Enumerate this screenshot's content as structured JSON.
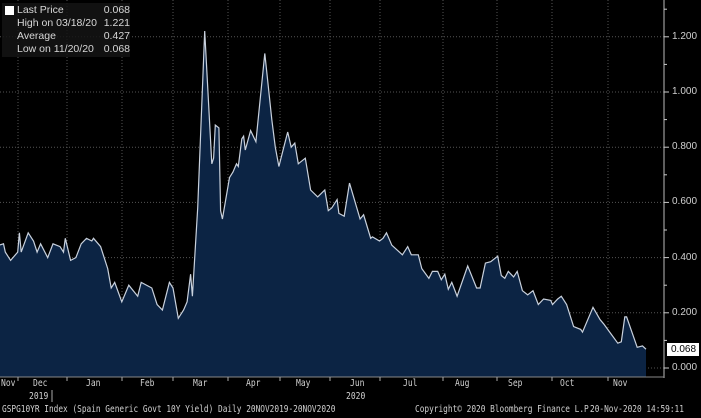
{
  "chart_data": {
    "type": "area",
    "title": "GSPG10YR Index (Spain Generic Govt 10Y Yield)",
    "period": "Daily 20NOV2019-20NOV2020",
    "x_unit": "days since 20-Nov-2019",
    "xlim": [
      0,
      366
    ],
    "ylim": [
      0,
      1.3
    ],
    "yticks": [
      "0.000",
      "0.200",
      "0.400",
      "0.600",
      "0.800",
      "1.000",
      "1.200"
    ],
    "ytick_values": [
      0,
      0.2,
      0.4,
      0.6,
      0.8,
      1.0,
      1.2
    ],
    "month_labels": [
      "Nov",
      "Dec",
      "Jan",
      "Feb",
      "Mar",
      "Apr",
      "May",
      "Jun",
      "Jul",
      "Aug",
      "Sep",
      "Oct",
      "Nov"
    ],
    "year_labels": [
      "2019",
      "2020"
    ],
    "grid": true,
    "legend": [
      {
        "label": "Last Price",
        "value": "0.068"
      },
      {
        "label": "High on 03/18/20",
        "value": "1.221"
      },
      {
        "label": "Average",
        "value": "0.427"
      },
      {
        "label": "Low on 11/20/20",
        "value": "0.068"
      }
    ],
    "last_value_label": "0.068",
    "colors": {
      "fill": "#0c2444",
      "line": "#c9d1dd",
      "background": "#000000"
    },
    "series": [
      {
        "name": "GSPG10YR",
        "points": [
          [
            0,
            0.446
          ],
          [
            2,
            0.45
          ],
          [
            3,
            0.42
          ],
          [
            6,
            0.39
          ],
          [
            10,
            0.42
          ],
          [
            11,
            0.49
          ],
          [
            12,
            0.42
          ],
          [
            16,
            0.49
          ],
          [
            19,
            0.46
          ],
          [
            21,
            0.42
          ],
          [
            23,
            0.45
          ],
          [
            27,
            0.4
          ],
          [
            30,
            0.45
          ],
          [
            34,
            0.44
          ],
          [
            36,
            0.42
          ],
          [
            37,
            0.47
          ],
          [
            40,
            0.39
          ],
          [
            43,
            0.4
          ],
          [
            46,
            0.45
          ],
          [
            49,
            0.47
          ],
          [
            52,
            0.46
          ],
          [
            53,
            0.47
          ],
          [
            57,
            0.44
          ],
          [
            61,
            0.36
          ],
          [
            63,
            0.29
          ],
          [
            65,
            0.31
          ],
          [
            69,
            0.24
          ],
          [
            73,
            0.3
          ],
          [
            78,
            0.26
          ],
          [
            80,
            0.31
          ],
          [
            86,
            0.29
          ],
          [
            89,
            0.23
          ],
          [
            92,
            0.21
          ],
          [
            96,
            0.31
          ],
          [
            98,
            0.29
          ],
          [
            101,
            0.18
          ],
          [
            104,
            0.21
          ],
          [
            106,
            0.24
          ],
          [
            108,
            0.34
          ],
          [
            109,
            0.26
          ],
          [
            112,
            0.58
          ],
          [
            116,
            1.221
          ],
          [
            120,
            0.74
          ],
          [
            121,
            0.76
          ],
          [
            122,
            0.88
          ],
          [
            124,
            0.87
          ],
          [
            125,
            0.57
          ],
          [
            126,
            0.54
          ],
          [
            130,
            0.69
          ],
          [
            132,
            0.71
          ],
          [
            134,
            0.74
          ],
          [
            135,
            0.73
          ],
          [
            137,
            0.83
          ],
          [
            138,
            0.84
          ],
          [
            139,
            0.79
          ],
          [
            142,
            0.86
          ],
          [
            145,
            0.82
          ],
          [
            150,
            1.14
          ],
          [
            154,
            0.9
          ],
          [
            156,
            0.8
          ],
          [
            158,
            0.73
          ],
          [
            160,
            0.78
          ],
          [
            163,
            0.855
          ],
          [
            165,
            0.8
          ],
          [
            167,
            0.815
          ],
          [
            169,
            0.74
          ],
          [
            173,
            0.76
          ],
          [
            176,
            0.645
          ],
          [
            180,
            0.62
          ],
          [
            184,
            0.645
          ],
          [
            186,
            0.57
          ],
          [
            188,
            0.58
          ],
          [
            191,
            0.61
          ],
          [
            192,
            0.56
          ],
          [
            195,
            0.55
          ],
          [
            198,
            0.67
          ],
          [
            204,
            0.54
          ],
          [
            206,
            0.555
          ],
          [
            210,
            0.47
          ],
          [
            211,
            0.475
          ],
          [
            215,
            0.46
          ],
          [
            217,
            0.47
          ],
          [
            219,
            0.49
          ],
          [
            222,
            0.445
          ],
          [
            228,
            0.41
          ],
          [
            231,
            0.44
          ],
          [
            233,
            0.41
          ],
          [
            237,
            0.41
          ],
          [
            239,
            0.36
          ],
          [
            243,
            0.325
          ],
          [
            245,
            0.35
          ],
          [
            248,
            0.35
          ],
          [
            250,
            0.32
          ],
          [
            252,
            0.34
          ],
          [
            254,
            0.285
          ],
          [
            256,
            0.31
          ],
          [
            259,
            0.26
          ],
          [
            265,
            0.37
          ],
          [
            270,
            0.29
          ],
          [
            272,
            0.29
          ],
          [
            275,
            0.38
          ],
          [
            278,
            0.385
          ],
          [
            282,
            0.405
          ],
          [
            284,
            0.335
          ],
          [
            286,
            0.325
          ],
          [
            288,
            0.35
          ],
          [
            291,
            0.33
          ],
          [
            293,
            0.35
          ],
          [
            296,
            0.28
          ],
          [
            299,
            0.265
          ],
          [
            302,
            0.28
          ],
          [
            305,
            0.23
          ],
          [
            308,
            0.25
          ],
          [
            312,
            0.245
          ],
          [
            313,
            0.23
          ],
          [
            316,
            0.25
          ],
          [
            318,
            0.26
          ],
          [
            321,
            0.23
          ],
          [
            325,
            0.15
          ],
          [
            329,
            0.14
          ],
          [
            330,
            0.13
          ],
          [
            336,
            0.22
          ],
          [
            340,
            0.175
          ],
          [
            342,
            0.16
          ],
          [
            346,
            0.125
          ],
          [
            350,
            0.09
          ],
          [
            352,
            0.095
          ],
          [
            354,
            0.185
          ],
          [
            355,
            0.185
          ],
          [
            358,
            0.13
          ],
          [
            361,
            0.075
          ],
          [
            364,
            0.08
          ],
          [
            366,
            0.068
          ]
        ]
      }
    ]
  },
  "footer": {
    "ticker": "GSPG10YR Index (Spain Generic Govt 10Y Yield)  Daily 20NOV2019-20NOV2020",
    "copyright": "Copyright© 2020 Bloomberg Finance L.P.",
    "timestamp": "20-Nov-2020 14:59:11"
  }
}
